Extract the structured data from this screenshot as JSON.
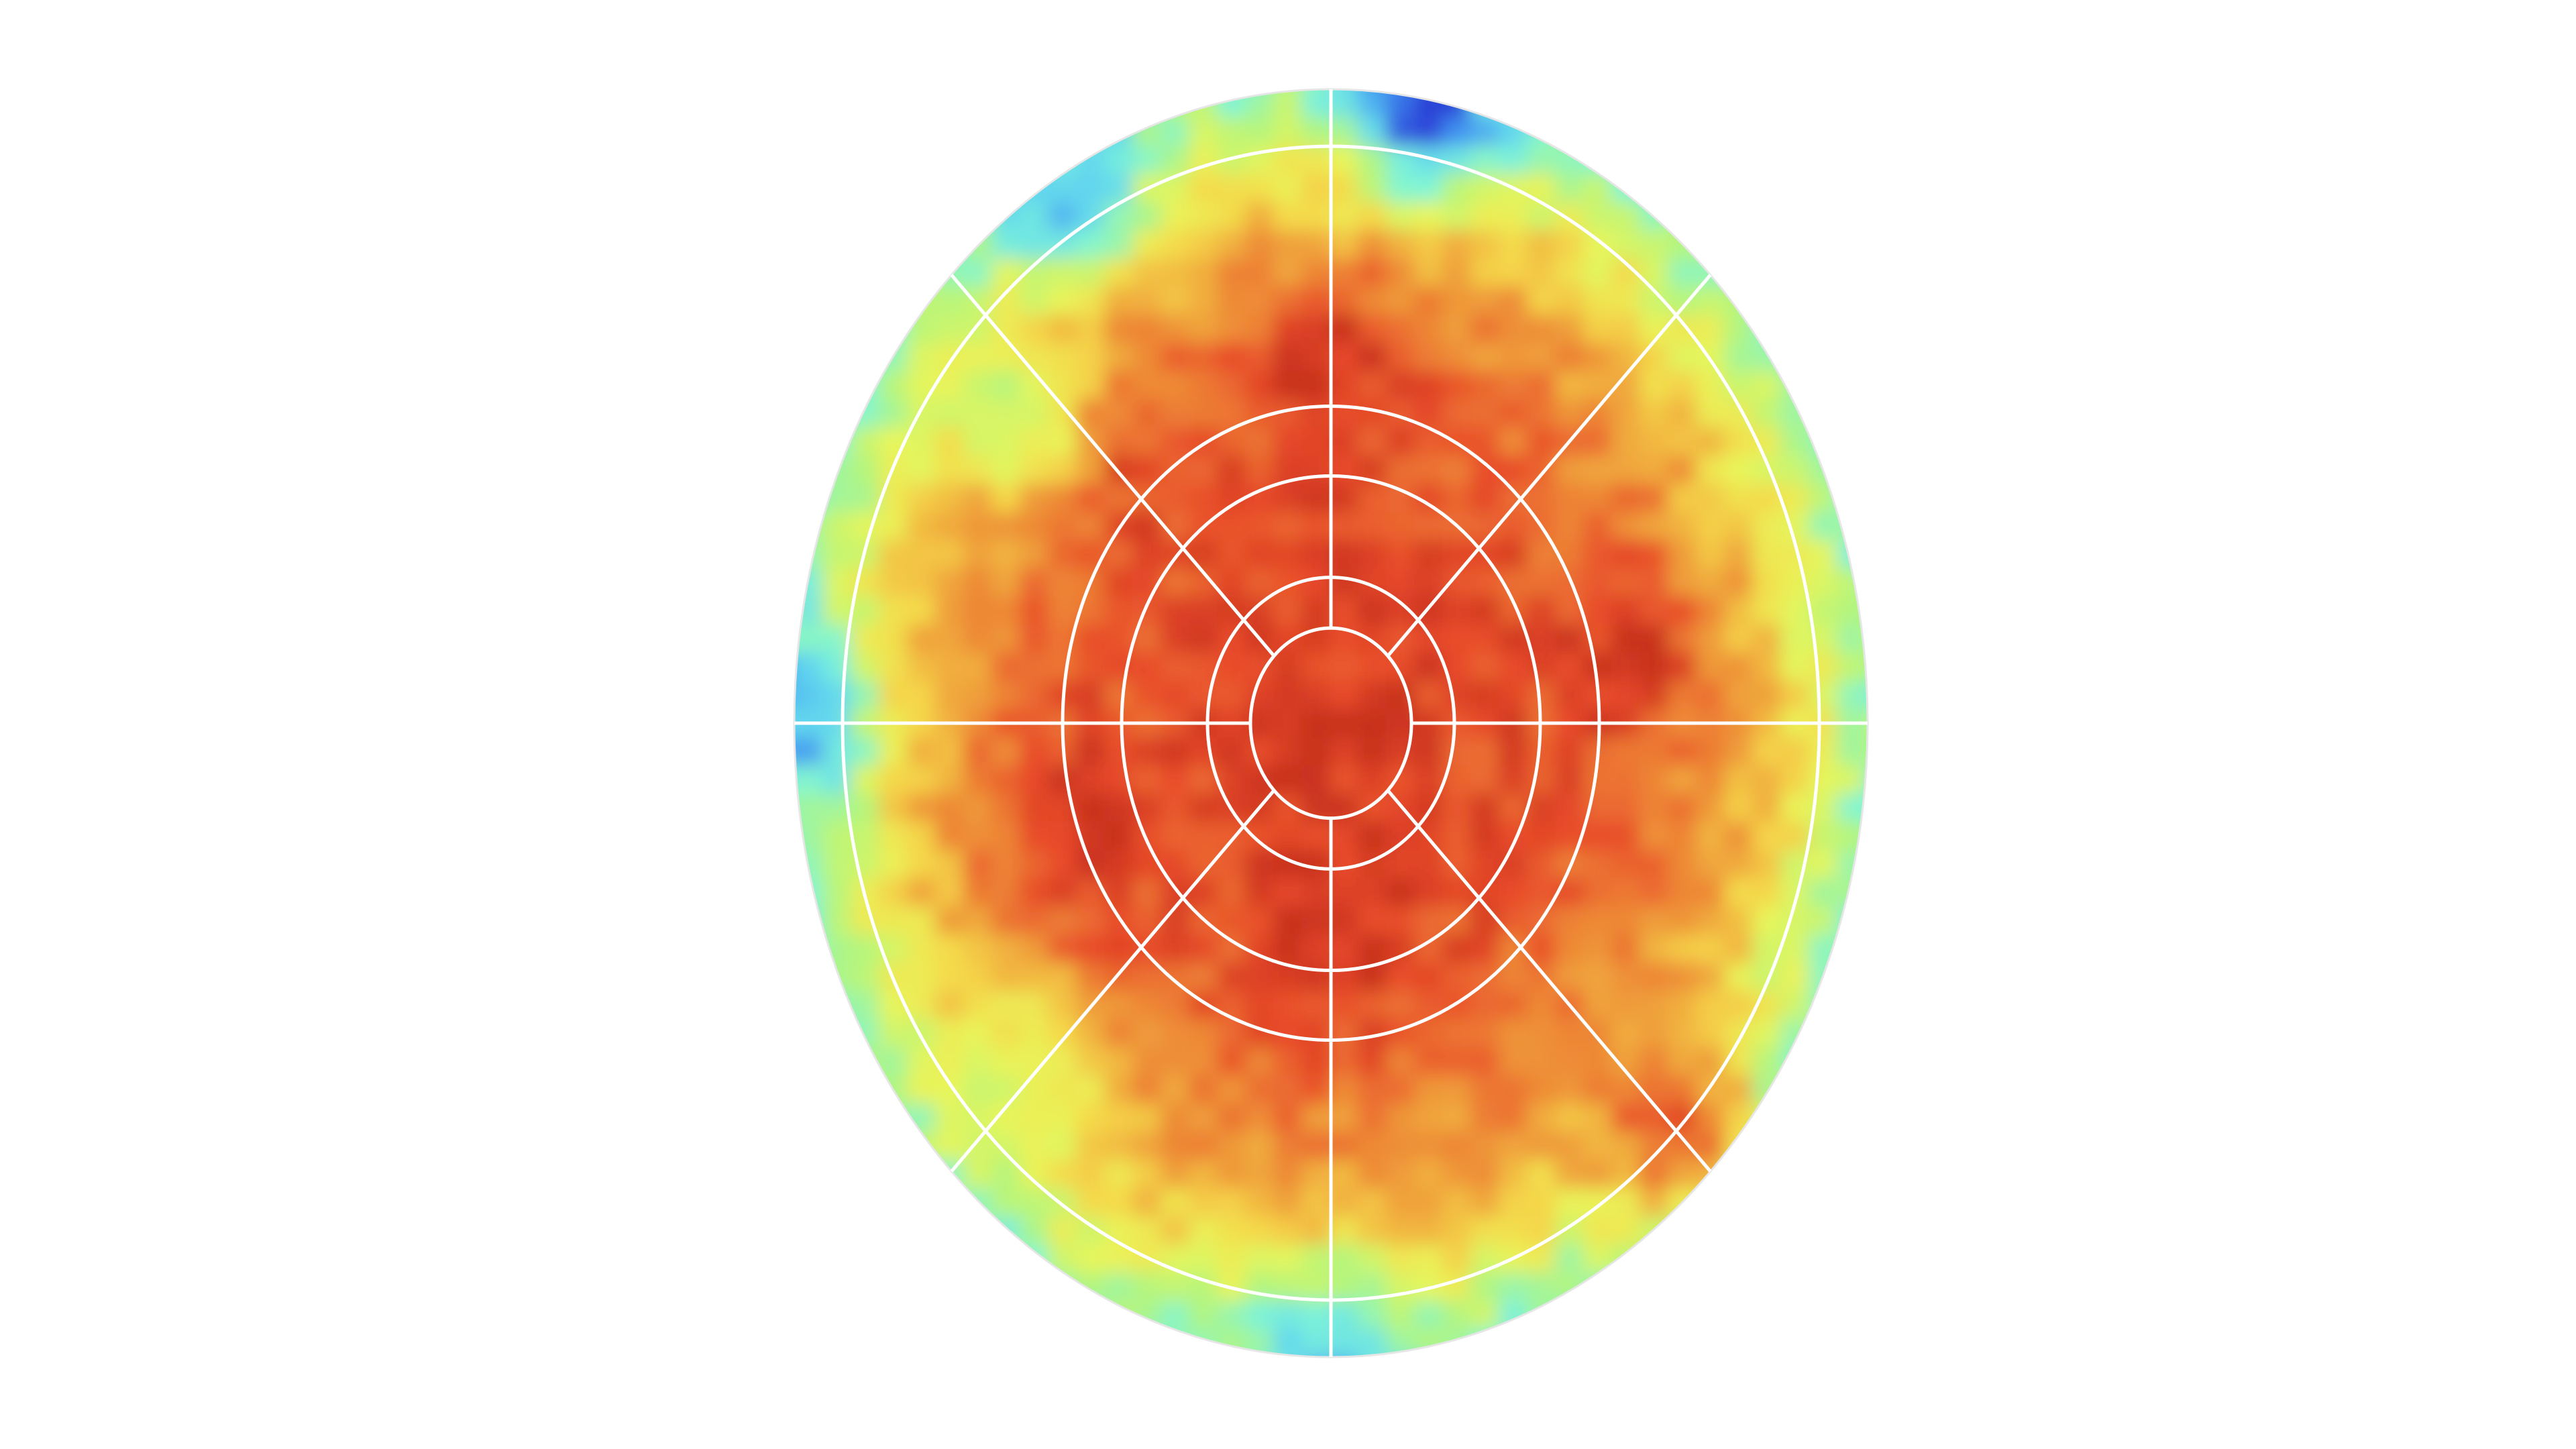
{
  "chart_data": {
    "type": "heatmap",
    "projection": "polar-disc",
    "title": "",
    "colorscale": [
      "#2b3fd6",
      "#3f8ef0",
      "#5fd3f0",
      "#7ff5d6",
      "#b4f57c",
      "#e8f55a",
      "#f5d94a",
      "#f0a63c",
      "#ec7a33",
      "#e84a2a",
      "#c8321f"
    ],
    "value_range": [
      0,
      1
    ],
    "grid": {
      "rings": [
        0.15,
        0.23,
        0.39,
        0.5,
        0.91,
        1.0
      ],
      "spokes_deg": [
        0,
        45,
        90,
        135,
        180,
        225,
        270,
        315
      ],
      "color": "#ffffff"
    },
    "radial_profile": {
      "r": [
        0.0,
        0.1,
        0.2,
        0.3,
        0.4,
        0.5,
        0.6,
        0.7,
        0.8,
        0.9,
        1.0
      ],
      "value": [
        0.95,
        0.94,
        0.92,
        0.9,
        0.88,
        0.85,
        0.8,
        0.74,
        0.65,
        0.52,
        0.35
      ]
    },
    "hotspots": [
      {
        "angle_deg": 270,
        "r": 0.3,
        "value": 1.0
      },
      {
        "angle_deg": 90,
        "r": 0.55,
        "value": 0.98
      },
      {
        "angle_deg": 10,
        "r": 0.55,
        "value": 0.97
      },
      {
        "angle_deg": 200,
        "r": 0.5,
        "value": 0.97
      },
      {
        "angle_deg": 135,
        "r": 0.6,
        "value": 0.96
      },
      {
        "angle_deg": 315,
        "r": 0.9,
        "value": 0.88
      }
    ],
    "coldspots": [
      {
        "angle_deg": 80,
        "r": 1.0,
        "value": 0.0
      },
      {
        "angle_deg": 180,
        "r": 1.0,
        "value": 0.15
      },
      {
        "angle_deg": 270,
        "r": 1.0,
        "value": 0.18
      },
      {
        "angle_deg": 120,
        "r": 0.98,
        "value": 0.2
      },
      {
        "angle_deg": 140,
        "r": 0.75,
        "value": 0.45
      },
      {
        "angle_deg": 225,
        "r": 0.8,
        "value": 0.5
      }
    ]
  }
}
